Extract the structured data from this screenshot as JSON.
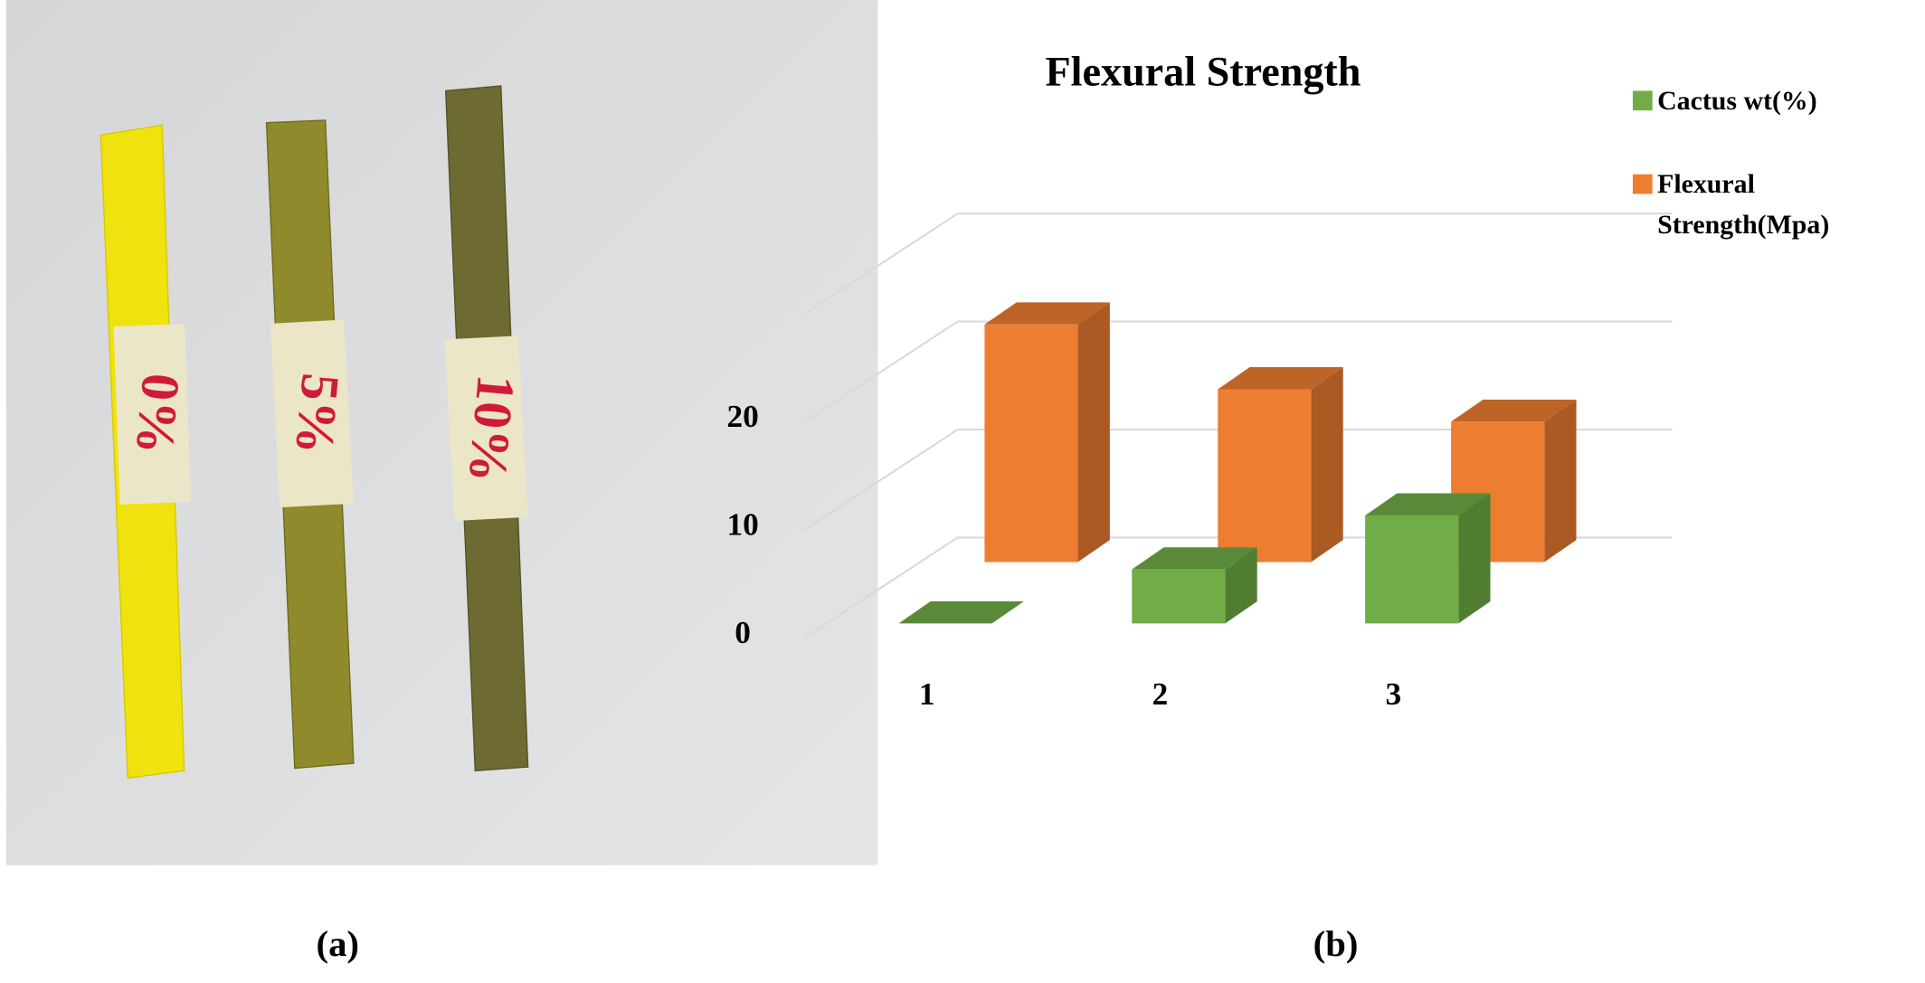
{
  "photo": {
    "labels": [
      "0%",
      "5%",
      "10%"
    ],
    "caption": "(a)"
  },
  "chart_data": {
    "type": "bar3d",
    "title": "Flexural Strength",
    "caption": "(b)",
    "categories": [
      "1",
      "2",
      "3"
    ],
    "series": [
      {
        "name": "Cactus wt(%)",
        "color": "#70ad47",
        "values": [
          0,
          5,
          10
        ]
      },
      {
        "name": "Flexural Strength(Mpa)",
        "color": "#ed7d31",
        "values": [
          22,
          16,
          13
        ]
      }
    ],
    "ylim": [
      0,
      30
    ],
    "yticks": [
      0,
      10,
      20
    ],
    "grid": true
  }
}
